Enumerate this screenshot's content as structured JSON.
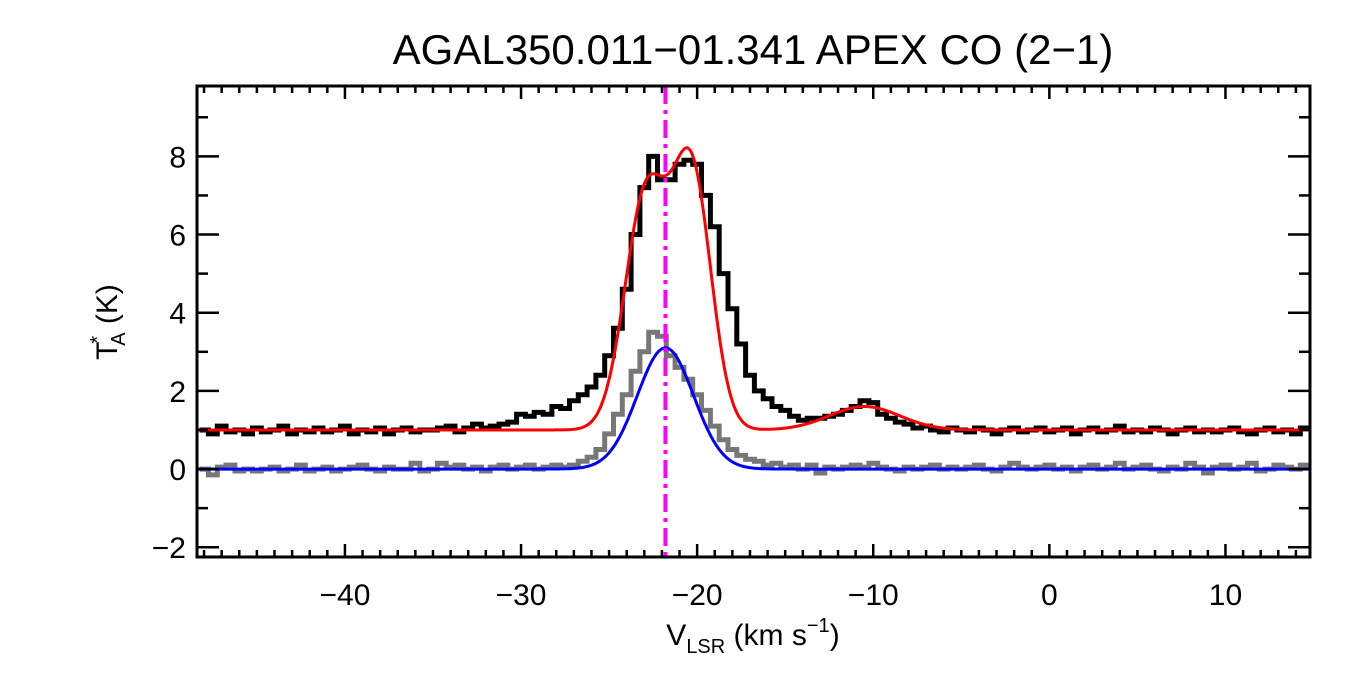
{
  "chart_data": {
    "type": "line",
    "title": "AGAL350.011−01.341   APEX CO (2−1)",
    "xlabel": {
      "main": "V",
      "sub": "LSR",
      "rest": " (km s",
      "sup": "−1",
      "end": ")"
    },
    "ylabel": {
      "main": "T",
      "sup": "*",
      "sub": "A",
      "rest": " (K)"
    },
    "xlim": [
      -48.4,
      14.8
    ],
    "ylim": [
      -2.25,
      9.8
    ],
    "x_ticks": [
      -40,
      -30,
      -20,
      -10,
      0,
      10
    ],
    "x_tick_labels": [
      "−40",
      "−30",
      "−20",
      "−10",
      "0",
      "10"
    ],
    "y_ticks": [
      -2,
      0,
      2,
      4,
      6,
      8
    ],
    "y_tick_labels": [
      "−2",
      "0",
      "2",
      "4",
      "6",
      "8"
    ],
    "grid": false,
    "vline": {
      "x": -21.8,
      "color": "#ff00ff",
      "style": "dash-dot"
    },
    "x": [
      -48,
      -47.5,
      -47,
      -46.5,
      -46,
      -45.5,
      -45,
      -44.5,
      -44,
      -43.5,
      -43,
      -42.5,
      -42,
      -41.5,
      -41,
      -40.5,
      -40,
      -39.5,
      -39,
      -38.5,
      -38,
      -37.5,
      -37,
      -36.5,
      -36,
      -35.5,
      -35,
      -34.5,
      -34,
      -33.5,
      -33,
      -32.5,
      -32,
      -31.5,
      -31,
      -30.5,
      -30,
      -29.5,
      -29,
      -28.5,
      -28,
      -27.5,
      -27,
      -26.5,
      -26,
      -25.5,
      -25,
      -24.5,
      -24,
      -23.5,
      -23,
      -22.5,
      -22,
      -21.5,
      -21,
      -20.5,
      -20,
      -19.5,
      -19,
      -18.5,
      -18,
      -17.5,
      -17,
      -16.5,
      -16,
      -15.5,
      -15,
      -14.5,
      -14,
      -13.5,
      -13,
      -12.5,
      -12,
      -11.5,
      -11,
      -10.5,
      -10,
      -9.5,
      -9,
      -8.5,
      -8,
      -7.5,
      -7,
      -6.5,
      -6,
      -5.5,
      -5,
      -4.5,
      -4,
      -3.5,
      -3,
      -2.5,
      -2,
      -1.5,
      -1,
      -0.5,
      0,
      0.5,
      1,
      1.5,
      2,
      2.5,
      3,
      3.5,
      4,
      4.5,
      5,
      5.5,
      6,
      6.5,
      7,
      7.5,
      8,
      8.5,
      9,
      9.5,
      10,
      10.5,
      11,
      11.5,
      12,
      12.5,
      13,
      13.5,
      14,
      14.5
    ],
    "series": [
      {
        "color": "#000000",
        "style": "histogram",
        "values": [
          1.0,
          0.9,
          1.1,
          0.95,
          1.0,
          0.9,
          1.05,
          0.95,
          1.0,
          1.1,
          0.9,
          1.0,
          0.95,
          1.05,
          0.95,
          1.0,
          1.1,
          0.9,
          1.0,
          0.95,
          1.05,
          0.9,
          1.0,
          1.05,
          0.95,
          1.0,
          1.0,
          1.05,
          1.1,
          0.95,
          1.05,
          1.15,
          1.05,
          1.1,
          1.15,
          1.2,
          1.4,
          1.35,
          1.45,
          1.4,
          1.6,
          1.55,
          1.75,
          1.9,
          2.1,
          2.4,
          2.9,
          3.6,
          4.6,
          6.0,
          7.2,
          8.0,
          7.4,
          7.4,
          7.8,
          7.9,
          7.8,
          7.0,
          6.2,
          5.0,
          4.1,
          3.2,
          2.4,
          2.0,
          1.8,
          1.6,
          1.5,
          1.35,
          1.25,
          1.3,
          1.3,
          1.35,
          1.4,
          1.5,
          1.6,
          1.75,
          1.7,
          1.4,
          1.3,
          1.2,
          1.15,
          1.05,
          1.1,
          1.0,
          0.95,
          1.05,
          1.0,
          0.95,
          1.05,
          1.0,
          0.9,
          1.0,
          1.05,
          0.95,
          1.0,
          1.05,
          0.95,
          1.0,
          1.05,
          0.9,
          1.0,
          1.05,
          0.95,
          1.0,
          1.1,
          0.95,
          1.0,
          0.95,
          1.05,
          1.0,
          0.9,
          1.0,
          1.05,
          0.95,
          1.0,
          0.95,
          1.0,
          1.05,
          0.95,
          0.9,
          1.0,
          1.05,
          0.95,
          1.0,
          0.9,
          1.05
        ]
      },
      {
        "color": "#777777",
        "style": "histogram",
        "values": [
          0.0,
          -0.15,
          0.05,
          0.1,
          -0.05,
          0.0,
          -0.05,
          0.0,
          0.05,
          -0.05,
          0.0,
          0.1,
          -0.05,
          0.0,
          0.05,
          -0.05,
          0.0,
          0.05,
          0.1,
          0.0,
          -0.05,
          0.05,
          0.0,
          0.0,
          0.15,
          -0.05,
          0.0,
          0.15,
          0.05,
          0.1,
          0.0,
          0.05,
          -0.05,
          0.05,
          0.1,
          0.0,
          0.05,
          0.1,
          0.0,
          0.05,
          0.1,
          0.05,
          0.1,
          0.2,
          0.3,
          0.5,
          0.9,
          1.4,
          1.9,
          2.5,
          3.0,
          3.5,
          3.4,
          2.9,
          2.6,
          2.3,
          1.9,
          1.5,
          1.1,
          0.75,
          0.5,
          0.35,
          0.25,
          0.2,
          0.1,
          0.15,
          0.05,
          0.1,
          0.0,
          0.1,
          -0.1,
          0.05,
          0.0,
          0.05,
          0.1,
          0.05,
          0.15,
          0.05,
          0.0,
          -0.05,
          0.05,
          0.0,
          0.05,
          0.1,
          0.0,
          0.05,
          0.0,
          0.05,
          0.1,
          0.0,
          -0.05,
          0.05,
          0.15,
          0.05,
          0.0,
          0.05,
          0.1,
          0.0,
          0.05,
          -0.05,
          0.05,
          0.1,
          0.0,
          0.05,
          0.15,
          0.0,
          0.05,
          0.1,
          0.0,
          -0.05,
          0.05,
          0.0,
          0.15,
          0.05,
          -0.1,
          0.05,
          0.1,
          0.0,
          0.05,
          0.15,
          -0.05,
          0.0,
          0.1,
          0.05,
          0.0,
          0.1
        ]
      },
      {
        "color": "#ff0000",
        "style": "fit",
        "baseline": 1.0,
        "gaussians": [
          {
            "amp": 6.0,
            "center": -22.9,
            "sigma": 1.2
          },
          {
            "amp": 6.5,
            "center": -20.3,
            "sigma": 1.1
          },
          {
            "amp": 0.6,
            "center": -10.5,
            "sigma": 2.0
          }
        ]
      },
      {
        "color": "#0000ff",
        "style": "fit",
        "baseline": 0.0,
        "gaussians": [
          {
            "amp": 3.1,
            "center": -21.8,
            "sigma": 1.6
          }
        ]
      }
    ]
  }
}
